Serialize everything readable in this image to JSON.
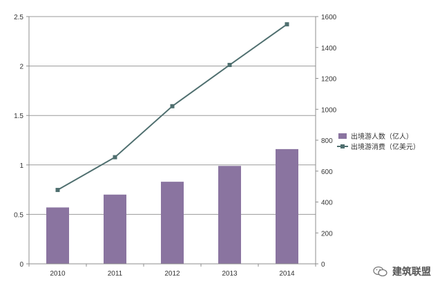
{
  "chart_data": {
    "type": "bar+line",
    "categories": [
      "2010",
      "2011",
      "2012",
      "2013",
      "2014"
    ],
    "series": [
      {
        "name": "出境游人数（亿人）",
        "type": "bar",
        "axis": "left",
        "color": "#8a74a0",
        "values": [
          0.57,
          0.7,
          0.83,
          0.99,
          1.16
        ]
      },
      {
        "name": "出境游消费（亿美元）",
        "type": "line",
        "axis": "right",
        "color": "#4f6f6f",
        "values": [
          478,
          690,
          1020,
          1287,
          1550
        ]
      }
    ],
    "y_left": {
      "min": 0,
      "max": 2.5,
      "ticks": [
        "0",
        "0.5",
        "1",
        "1.5",
        "2",
        "2.5"
      ]
    },
    "y_right": {
      "min": 0,
      "max": 1600,
      "ticks": [
        "0",
        "200",
        "400",
        "600",
        "800",
        "1000",
        "1200",
        "1400",
        "1600"
      ]
    },
    "grid": true,
    "legend_position": "right"
  },
  "watermark": {
    "text": "建筑联盟",
    "icon": "wechat-icon"
  }
}
